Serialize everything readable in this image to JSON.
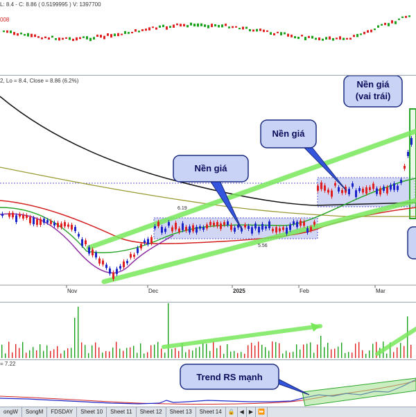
{
  "panes": {
    "top_header_line1": "L: 8.4 - C: 8.86 ( 0.5199995 ) V: 1397700",
    "top_header_line2": "008",
    "main_header": "2, Lo = 8.4, Close = 8.86 (6.2%)",
    "rs_header": "= 7.22"
  },
  "price_labels": {
    "high": "6.19",
    "low": "5.56"
  },
  "x_axis": [
    "Nov",
    "Dec",
    "2025",
    "Feb",
    "Mar"
  ],
  "callouts": {
    "base1": "Nền giá",
    "base2": "Nền giá",
    "base3_line1": "Nền giá",
    "base3_line2": "(vai trái)",
    "rs_trend": "Trend RS mạnh"
  },
  "tabs": [
    "ongW",
    "SongM",
    "FDSDAY",
    "Sheet 10",
    "Sheet 11",
    "Sheet 12",
    "Sheet 13",
    "Sheet 14"
  ],
  "colors": {
    "up": "#19a119",
    "down": "#e02020",
    "bar_up": "#1a23c8",
    "bar_down": "#e02020",
    "ma_black": "#111111",
    "ma_olive": "#9a9a33",
    "ma_red": "#d42020",
    "ma_green": "#2aa52a",
    "ma_purple": "#8a2aa0",
    "trend": "#78e85a",
    "box": "#b9c0f0"
  }
}
